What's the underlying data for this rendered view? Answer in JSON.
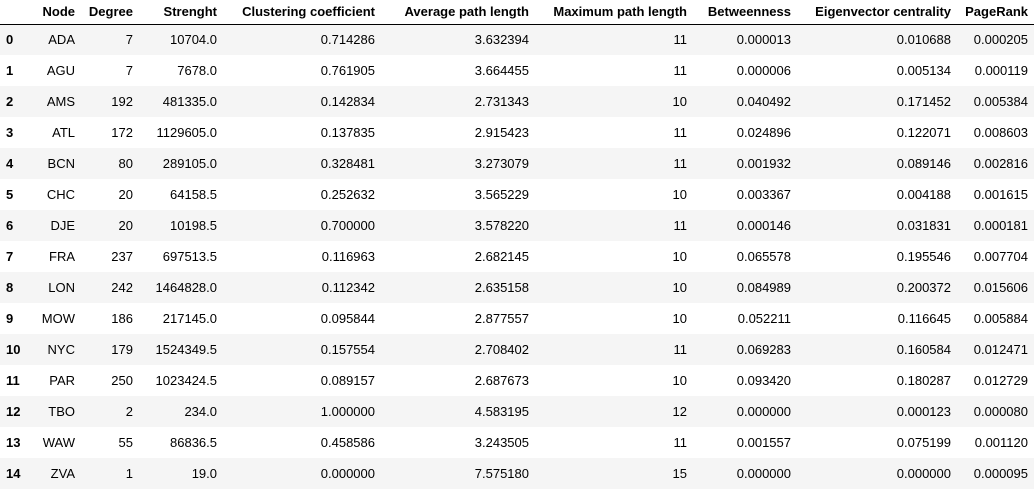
{
  "table": {
    "columns": [
      "",
      "Node",
      "Degree",
      "Strenght",
      "Clustering coefficient",
      "Average path length",
      "Maximum path length",
      "Betweenness",
      "Eigenvector centrality",
      "PageRank"
    ],
    "rows": [
      {
        "index": "0",
        "node": "ADA",
        "degree": "7",
        "strength": "10704.0",
        "clustering": "0.714286",
        "avg_path": "3.632394",
        "max_path": "11",
        "betweenness": "0.000013",
        "eigenvector": "0.010688",
        "pagerank": "0.000205"
      },
      {
        "index": "1",
        "node": "AGU",
        "degree": "7",
        "strength": "7678.0",
        "clustering": "0.761905",
        "avg_path": "3.664455",
        "max_path": "11",
        "betweenness": "0.000006",
        "eigenvector": "0.005134",
        "pagerank": "0.000119"
      },
      {
        "index": "2",
        "node": "AMS",
        "degree": "192",
        "strength": "481335.0",
        "clustering": "0.142834",
        "avg_path": "2.731343",
        "max_path": "10",
        "betweenness": "0.040492",
        "eigenvector": "0.171452",
        "pagerank": "0.005384"
      },
      {
        "index": "3",
        "node": "ATL",
        "degree": "172",
        "strength": "1129605.0",
        "clustering": "0.137835",
        "avg_path": "2.915423",
        "max_path": "11",
        "betweenness": "0.024896",
        "eigenvector": "0.122071",
        "pagerank": "0.008603"
      },
      {
        "index": "4",
        "node": "BCN",
        "degree": "80",
        "strength": "289105.0",
        "clustering": "0.328481",
        "avg_path": "3.273079",
        "max_path": "11",
        "betweenness": "0.001932",
        "eigenvector": "0.089146",
        "pagerank": "0.002816"
      },
      {
        "index": "5",
        "node": "CHC",
        "degree": "20",
        "strength": "64158.5",
        "clustering": "0.252632",
        "avg_path": "3.565229",
        "max_path": "10",
        "betweenness": "0.003367",
        "eigenvector": "0.004188",
        "pagerank": "0.001615"
      },
      {
        "index": "6",
        "node": "DJE",
        "degree": "20",
        "strength": "10198.5",
        "clustering": "0.700000",
        "avg_path": "3.578220",
        "max_path": "11",
        "betweenness": "0.000146",
        "eigenvector": "0.031831",
        "pagerank": "0.000181"
      },
      {
        "index": "7",
        "node": "FRA",
        "degree": "237",
        "strength": "697513.5",
        "clustering": "0.116963",
        "avg_path": "2.682145",
        "max_path": "10",
        "betweenness": "0.065578",
        "eigenvector": "0.195546",
        "pagerank": "0.007704"
      },
      {
        "index": "8",
        "node": "LON",
        "degree": "242",
        "strength": "1464828.0",
        "clustering": "0.112342",
        "avg_path": "2.635158",
        "max_path": "10",
        "betweenness": "0.084989",
        "eigenvector": "0.200372",
        "pagerank": "0.015606"
      },
      {
        "index": "9",
        "node": "MOW",
        "degree": "186",
        "strength": "217145.0",
        "clustering": "0.095844",
        "avg_path": "2.877557",
        "max_path": "10",
        "betweenness": "0.052211",
        "eigenvector": "0.116645",
        "pagerank": "0.005884"
      },
      {
        "index": "10",
        "node": "NYC",
        "degree": "179",
        "strength": "1524349.5",
        "clustering": "0.157554",
        "avg_path": "2.708402",
        "max_path": "11",
        "betweenness": "0.069283",
        "eigenvector": "0.160584",
        "pagerank": "0.012471"
      },
      {
        "index": "11",
        "node": "PAR",
        "degree": "250",
        "strength": "1023424.5",
        "clustering": "0.089157",
        "avg_path": "2.687673",
        "max_path": "10",
        "betweenness": "0.093420",
        "eigenvector": "0.180287",
        "pagerank": "0.012729"
      },
      {
        "index": "12",
        "node": "TBO",
        "degree": "2",
        "strength": "234.0",
        "clustering": "1.000000",
        "avg_path": "4.583195",
        "max_path": "12",
        "betweenness": "0.000000",
        "eigenvector": "0.000123",
        "pagerank": "0.000080"
      },
      {
        "index": "13",
        "node": "WAW",
        "degree": "55",
        "strength": "86836.5",
        "clustering": "0.458586",
        "avg_path": "3.243505",
        "max_path": "11",
        "betweenness": "0.001557",
        "eigenvector": "0.075199",
        "pagerank": "0.001120"
      },
      {
        "index": "14",
        "node": "ZVA",
        "degree": "1",
        "strength": "19.0",
        "clustering": "0.000000",
        "avg_path": "7.575180",
        "max_path": "15",
        "betweenness": "0.000000",
        "eigenvector": "0.000000",
        "pagerank": "0.000095"
      }
    ]
  }
}
